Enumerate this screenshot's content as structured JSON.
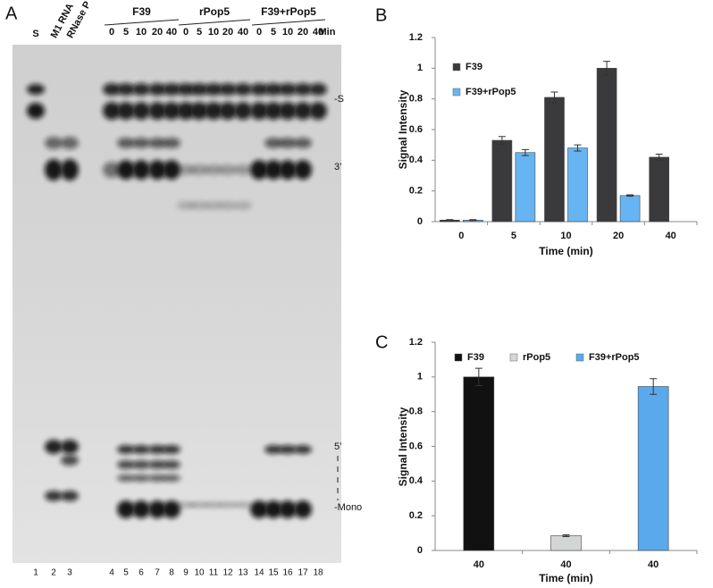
{
  "gel": {
    "panel_letter": "A",
    "lane_headers": [
      "S",
      "M1 RNA",
      "RNase P"
    ],
    "time_groups": [
      {
        "name": "F39",
        "times": [
          "0",
          "5",
          "10",
          "20",
          "40"
        ]
      },
      {
        "name": "rPop5",
        "times": [
          "0",
          "5",
          "10",
          "20",
          "40"
        ]
      },
      {
        "name": "F39+rPop5",
        "times": [
          "0",
          "5",
          "10",
          "20",
          "40"
        ]
      }
    ],
    "time_unit": "Min",
    "band_labels": [
      "-S",
      "3’",
      "5’",
      "-Mono"
    ],
    "lane_numbers": [
      1,
      2,
      3,
      4,
      5,
      6,
      7,
      8,
      9,
      10,
      11,
      12,
      13,
      14,
      15,
      16,
      17,
      18
    ]
  },
  "chart_data": [
    {
      "type": "bar",
      "panel_letter": "B",
      "ylabel": "Signal Intensity",
      "xlabel": "Time (min)",
      "categories": [
        "0",
        "5",
        "10",
        "20",
        "40"
      ],
      "series": [
        {
          "name": "F39",
          "color": "#3a3a3c",
          "values": [
            0.01,
            0.53,
            0.81,
            1.0,
            0.42
          ],
          "errors": [
            0.003,
            0.025,
            0.035,
            0.045,
            0.02
          ]
        },
        {
          "name": "F39+rPop5",
          "color": "#66b5f2",
          "values": [
            0.01,
            0.45,
            0.48,
            0.17,
            null
          ],
          "errors": [
            0.003,
            0.02,
            0.02,
            0.005,
            null
          ]
        }
      ],
      "ylim": [
        0,
        1.2
      ],
      "yticks": [
        0,
        0.2,
        0.4,
        0.6,
        0.8,
        1,
        1.2
      ],
      "legend": "upper left"
    },
    {
      "type": "bar",
      "panel_letter": "C",
      "ylabel": "Signal Intensity",
      "xlabel": "Time (min)",
      "categories": [
        "40",
        "40",
        "40"
      ],
      "series": [
        {
          "name": "F39",
          "color": "#111111",
          "values": [
            1.0,
            null,
            null
          ],
          "errors": [
            0.05,
            null,
            null
          ]
        },
        {
          "name": "rPop5",
          "color": "#d4d6d6",
          "values": [
            null,
            0.085,
            null
          ],
          "errors": [
            null,
            0.005,
            null
          ]
        },
        {
          "name": "F39+rPop5",
          "color": "#5aa9ec",
          "values": [
            null,
            null,
            0.945
          ],
          "errors": [
            null,
            null,
            0.045
          ]
        }
      ],
      "ylim": [
        0,
        1.2
      ],
      "yticks": [
        0,
        0.2,
        0.4,
        0.6,
        0.8,
        1,
        1.2
      ],
      "legend": "upper center"
    }
  ]
}
